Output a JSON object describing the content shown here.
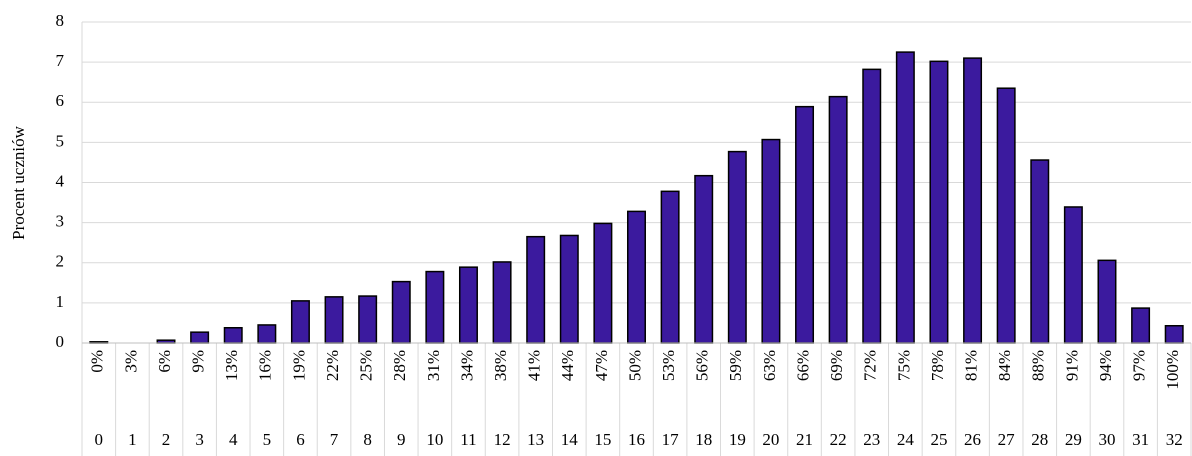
{
  "chart_data": {
    "type": "bar",
    "y_label": "Procent uczniów",
    "categories": [
      0,
      1,
      2,
      3,
      4,
      5,
      6,
      7,
      8,
      9,
      10,
      11,
      12,
      13,
      14,
      15,
      16,
      17,
      18,
      19,
      20,
      21,
      22,
      23,
      24,
      25,
      26,
      27,
      28,
      29,
      30,
      31,
      32
    ],
    "percent_labels": [
      "0%",
      "3%",
      "6%",
      "9%",
      "13%",
      "16%",
      "19%",
      "22%",
      "25%",
      "28%",
      "31%",
      "34%",
      "38%",
      "41%",
      "44%",
      "47%",
      "50%",
      "53%",
      "56%",
      "59%",
      "63%",
      "66%",
      "69%",
      "72%",
      "75%",
      "78%",
      "81%",
      "84%",
      "88%",
      "91%",
      "94%",
      "97%",
      "100%"
    ],
    "values": [
      0.03,
      0,
      0.07,
      0.27,
      0.38,
      0.45,
      1.05,
      1.15,
      1.17,
      1.53,
      1.78,
      1.89,
      2.02,
      2.65,
      2.68,
      2.98,
      3.28,
      3.78,
      4.17,
      4.77,
      5.07,
      5.89,
      6.14,
      6.82,
      7.25,
      7.02,
      7.1,
      6.35,
      4.56,
      3.39,
      2.06,
      0.87,
      0.43
    ],
    "color": "#3b1a9e",
    "ylim": [
      0,
      8
    ],
    "yticks": [
      0,
      1,
      2,
      3,
      4,
      5,
      6,
      7,
      8
    ],
    "grid": true
  }
}
